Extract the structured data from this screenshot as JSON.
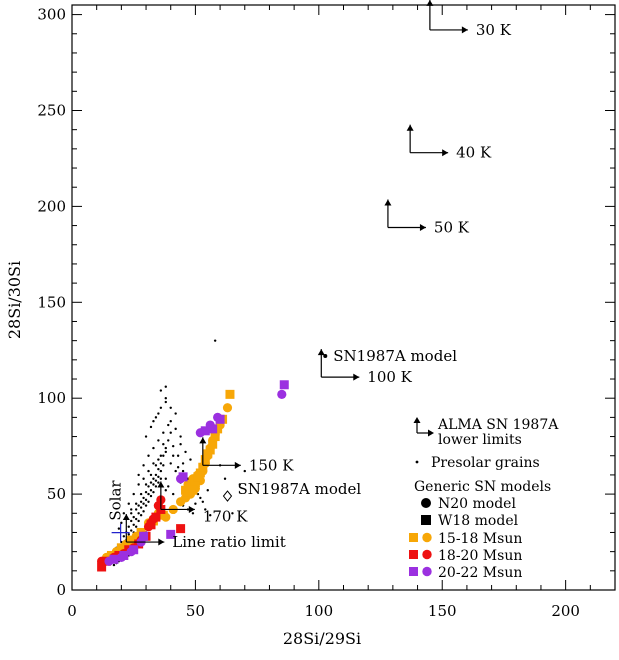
{
  "chart_data": {
    "type": "scatter",
    "xlabel": "28Si/29Si",
    "ylabel": "28Si/30Si",
    "xlim": [
      0,
      220
    ],
    "ylim": [
      0,
      305
    ],
    "x_ticks": [
      0,
      50,
      100,
      150,
      200
    ],
    "y_ticks": [
      0,
      50,
      100,
      150,
      200,
      250,
      300
    ],
    "solar": {
      "label": "Solar",
      "x": 19.7,
      "y": 29.9,
      "color": "#2222cc"
    },
    "lower_limits": [
      {
        "label": "30 K",
        "x": 145,
        "y": 292
      },
      {
        "label": "40 K",
        "x": 137,
        "y": 228
      },
      {
        "label": "50 K",
        "x": 128,
        "y": 189
      },
      {
        "label": "SN1987A model",
        "x": 101,
        "y": 122
      },
      {
        "label": "100 K",
        "x": 101,
        "y": 111
      },
      {
        "label": "150 K",
        "x": 53,
        "y": 65
      },
      {
        "label": "170 K",
        "x": 36,
        "y": 42
      },
      {
        "label": "Line ratio limit",
        "x": 22,
        "y": 25
      }
    ],
    "sn1987a_model_diamond": {
      "label": "SN1987A model",
      "x": 63,
      "y": 49
    },
    "legend": {
      "alma": {
        "label_line1": "ALMA SN 1987A",
        "label_line2": "lower limits"
      },
      "presolar": "Presolar grains",
      "title": "Generic SN models",
      "n20": "N20 model",
      "w18": "W18 model",
      "groups": [
        {
          "label": "15-18 Msun",
          "color": "#f7a707"
        },
        {
          "label": "18-20 Msun",
          "color": "#ee1111"
        },
        {
          "label": "20-22 Msun",
          "color": "#9b30e0"
        }
      ]
    },
    "series": [
      {
        "name": "Presolar grains",
        "marker": "dot",
        "color": "#000000",
        "points": [
          [
            11,
            16
          ],
          [
            12,
            14
          ],
          [
            13,
            17
          ],
          [
            14,
            16
          ],
          [
            15,
            18
          ],
          [
            16,
            17
          ],
          [
            17,
            20
          ],
          [
            18,
            22
          ],
          [
            19,
            21
          ],
          [
            20,
            25
          ],
          [
            21,
            28
          ],
          [
            22,
            30
          ],
          [
            23,
            33
          ],
          [
            24,
            36
          ],
          [
            25,
            38
          ],
          [
            26,
            42
          ],
          [
            27,
            44
          ],
          [
            28,
            46
          ],
          [
            29,
            48
          ],
          [
            30,
            51
          ],
          [
            31,
            54
          ],
          [
            32,
            56
          ],
          [
            33,
            58
          ],
          [
            34,
            60
          ],
          [
            35,
            63
          ],
          [
            36,
            66
          ],
          [
            37,
            70
          ],
          [
            38,
            74
          ],
          [
            39,
            78
          ],
          [
            40,
            82
          ],
          [
            22,
            26
          ],
          [
            23,
            29
          ],
          [
            24,
            31
          ],
          [
            25,
            34
          ],
          [
            26,
            37
          ],
          [
            27,
            40
          ],
          [
            28,
            43
          ],
          [
            29,
            45
          ],
          [
            30,
            47
          ],
          [
            31,
            50
          ],
          [
            32,
            52
          ],
          [
            33,
            55
          ],
          [
            34,
            57
          ],
          [
            35,
            59
          ],
          [
            36,
            62
          ],
          [
            37,
            65
          ],
          [
            25,
            30
          ],
          [
            26,
            33
          ],
          [
            27,
            36
          ],
          [
            28,
            39
          ],
          [
            29,
            41
          ],
          [
            30,
            44
          ],
          [
            31,
            46
          ],
          [
            32,
            49
          ],
          [
            33,
            51
          ],
          [
            34,
            54
          ],
          [
            35,
            56
          ],
          [
            36,
            58
          ],
          [
            24,
            40
          ],
          [
            26,
            45
          ],
          [
            28,
            50
          ],
          [
            30,
            55
          ],
          [
            32,
            60
          ],
          [
            34,
            65
          ],
          [
            36,
            70
          ],
          [
            38,
            72
          ],
          [
            27,
            55
          ],
          [
            29,
            58
          ],
          [
            31,
            62
          ],
          [
            33,
            66
          ],
          [
            35,
            68
          ],
          [
            37,
            76
          ],
          [
            30,
            80
          ],
          [
            32,
            85
          ],
          [
            34,
            90
          ],
          [
            36,
            95
          ],
          [
            38,
            100
          ],
          [
            36,
            104
          ],
          [
            38,
            106
          ],
          [
            33,
            88
          ],
          [
            35,
            92
          ],
          [
            40,
            88
          ],
          [
            42,
            84
          ],
          [
            44,
            80
          ],
          [
            41,
            75
          ],
          [
            43,
            70
          ],
          [
            45,
            66
          ],
          [
            46,
            60
          ],
          [
            47,
            55
          ],
          [
            48,
            50
          ],
          [
            44,
            56
          ],
          [
            42,
            62
          ],
          [
            40,
            66
          ],
          [
            38,
            58
          ],
          [
            39,
            54
          ],
          [
            41,
            50
          ],
          [
            43,
            46
          ],
          [
            45,
            44
          ],
          [
            37,
            48
          ],
          [
            36,
            44
          ],
          [
            35,
            40
          ],
          [
            34,
            38
          ],
          [
            33,
            36
          ],
          [
            32,
            34
          ],
          [
            31,
            32
          ],
          [
            30,
            30
          ],
          [
            29,
            28
          ],
          [
            28,
            26
          ],
          [
            27,
            24
          ],
          [
            26,
            22
          ],
          [
            23,
            18
          ],
          [
            24,
            20
          ],
          [
            25,
            21
          ],
          [
            21,
            19
          ],
          [
            20,
            17
          ],
          [
            19,
            15
          ],
          [
            18,
            14
          ],
          [
            17,
            13
          ],
          [
            58,
            130
          ],
          [
            56,
            75
          ],
          [
            60,
            65
          ],
          [
            62,
            58
          ],
          [
            55,
            52
          ],
          [
            52,
            48
          ],
          [
            50,
            45
          ],
          [
            65,
            40
          ],
          [
            68,
            55
          ],
          [
            70,
            62
          ],
          [
            48,
            68
          ],
          [
            46,
            72
          ],
          [
            44,
            76
          ],
          [
            42,
            92
          ],
          [
            40,
            95
          ],
          [
            38,
            98
          ],
          [
            31,
            70
          ],
          [
            29,
            65
          ],
          [
            27,
            60
          ],
          [
            25,
            50
          ],
          [
            23,
            45
          ],
          [
            21,
            40
          ],
          [
            20,
            35
          ],
          [
            19,
            32
          ],
          [
            22,
            38
          ],
          [
            24,
            42
          ],
          [
            33,
            74
          ],
          [
            35,
            78
          ],
          [
            37,
            82
          ],
          [
            39,
            86
          ],
          [
            41,
            70
          ],
          [
            43,
            64
          ],
          [
            45,
            62
          ],
          [
            47,
            58
          ],
          [
            49,
            53
          ],
          [
            51,
            50
          ],
          [
            53,
            46
          ],
          [
            54,
            42
          ],
          [
            56,
            39
          ],
          [
            47,
            42
          ],
          [
            49,
            40
          ],
          [
            38,
            52
          ]
        ]
      },
      {
        "name": "15-18 Msun N20",
        "marker": "circle",
        "color": "#f7a707",
        "points": [
          [
            14,
            17
          ],
          [
            18,
            20
          ],
          [
            22,
            24
          ],
          [
            26,
            28
          ],
          [
            31,
            35
          ],
          [
            35,
            40
          ],
          [
            38,
            38
          ],
          [
            41,
            42
          ],
          [
            44,
            46
          ],
          [
            46,
            48
          ],
          [
            48,
            50
          ],
          [
            50,
            53
          ],
          [
            52,
            57
          ],
          [
            53,
            62
          ],
          [
            54,
            66
          ],
          [
            55,
            70
          ],
          [
            56,
            74
          ],
          [
            57,
            78
          ],
          [
            58,
            81
          ],
          [
            60,
            86
          ],
          [
            63,
            95
          ],
          [
            47,
            55
          ],
          [
            49,
            58
          ],
          [
            51,
            60
          ]
        ]
      },
      {
        "name": "15-18 Msun W18",
        "marker": "square",
        "color": "#f7a707",
        "points": [
          [
            16,
            18
          ],
          [
            20,
            22
          ],
          [
            24,
            26
          ],
          [
            28,
            30
          ],
          [
            33,
            36
          ],
          [
            37,
            39
          ],
          [
            46,
            52
          ],
          [
            48,
            54
          ],
          [
            50,
            56
          ],
          [
            51,
            59
          ],
          [
            52,
            61
          ],
          [
            53,
            64
          ],
          [
            54,
            68
          ],
          [
            55,
            71
          ],
          [
            56,
            73
          ],
          [
            57,
            76
          ],
          [
            58,
            80
          ],
          [
            59,
            84
          ],
          [
            61,
            89
          ],
          [
            64,
            102
          ],
          [
            47,
            51
          ],
          [
            49,
            52
          ]
        ]
      },
      {
        "name": "18-20 Msun N20",
        "marker": "circle",
        "color": "#ee1111",
        "points": [
          [
            12,
            15
          ],
          [
            17,
            17
          ],
          [
            21,
            19
          ],
          [
            25,
            22
          ],
          [
            28,
            26
          ],
          [
            31,
            33
          ],
          [
            32,
            35
          ],
          [
            33,
            37
          ],
          [
            35,
            44
          ],
          [
            36,
            47
          ]
        ]
      },
      {
        "name": "18-20 Msun W18",
        "marker": "square",
        "color": "#ee1111",
        "points": [
          [
            12,
            12
          ],
          [
            14,
            15
          ],
          [
            19,
            18
          ],
          [
            23,
            21
          ],
          [
            27,
            24
          ],
          [
            30,
            28
          ],
          [
            32,
            34
          ],
          [
            34,
            38
          ],
          [
            36,
            42
          ],
          [
            44,
            32
          ]
        ]
      },
      {
        "name": "20-22 Msun N20",
        "marker": "circle",
        "color": "#9b30e0",
        "points": [
          [
            15,
            15
          ],
          [
            20,
            17
          ],
          [
            24,
            20
          ],
          [
            28,
            25
          ],
          [
            44,
            58
          ],
          [
            52,
            82
          ],
          [
            56,
            86
          ],
          [
            59,
            90
          ],
          [
            85,
            102
          ]
        ]
      },
      {
        "name": "20-22 Msun W18",
        "marker": "square",
        "color": "#9b30e0",
        "points": [
          [
            17,
            16
          ],
          [
            21,
            18
          ],
          [
            25,
            21
          ],
          [
            29,
            28
          ],
          [
            40,
            29
          ],
          [
            45,
            59
          ],
          [
            54,
            83
          ],
          [
            57,
            84
          ],
          [
            60,
            89
          ],
          [
            86,
            107
          ]
        ]
      }
    ]
  }
}
